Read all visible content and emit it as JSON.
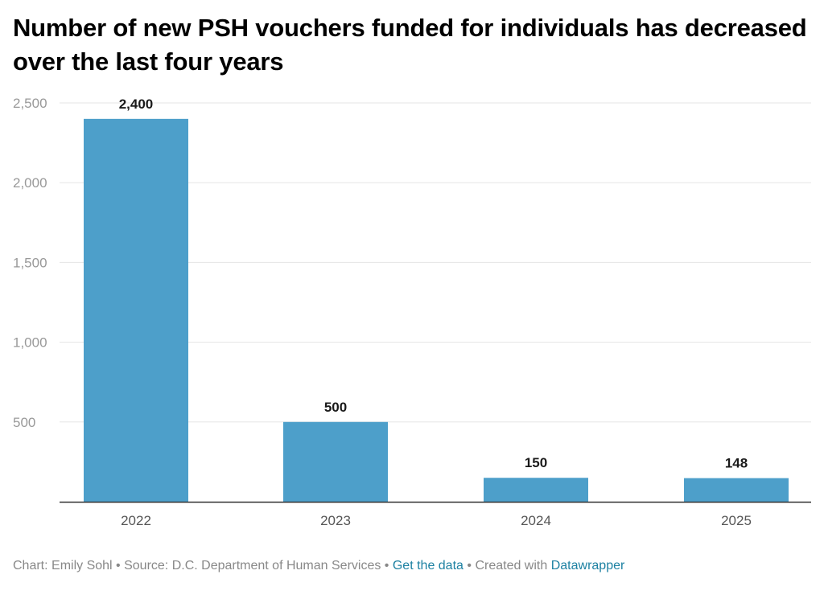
{
  "chart_data": {
    "type": "bar",
    "title": "Number of new PSH vouchers funded for individuals has decreased over the last four years",
    "categories": [
      "2022",
      "2023",
      "2024",
      "2025"
    ],
    "values": [
      2400,
      500,
      150,
      148
    ],
    "value_labels": [
      "2,400",
      "500",
      "150",
      "148"
    ],
    "yticks": [
      500,
      1000,
      1500,
      2000,
      2500
    ],
    "ytick_labels": [
      "500",
      "1,000",
      "1,500",
      "2,000",
      "2,500"
    ],
    "ylim": [
      0,
      2500
    ],
    "grid": true,
    "bar_color": "#4d9fca",
    "xlabel": "",
    "ylabel": ""
  },
  "footer": {
    "chart_credit": "Chart: Emily Sohl",
    "source": "Source: D.C. Department of Human Services",
    "get_data": "Get the data",
    "created_with": "Created with",
    "datawrapper": "Datawrapper",
    "separator": "•"
  },
  "colors": {
    "link": "#1d81a2",
    "muted_text": "#888888",
    "grid": "#e5e5e5",
    "axis": "#333333"
  }
}
